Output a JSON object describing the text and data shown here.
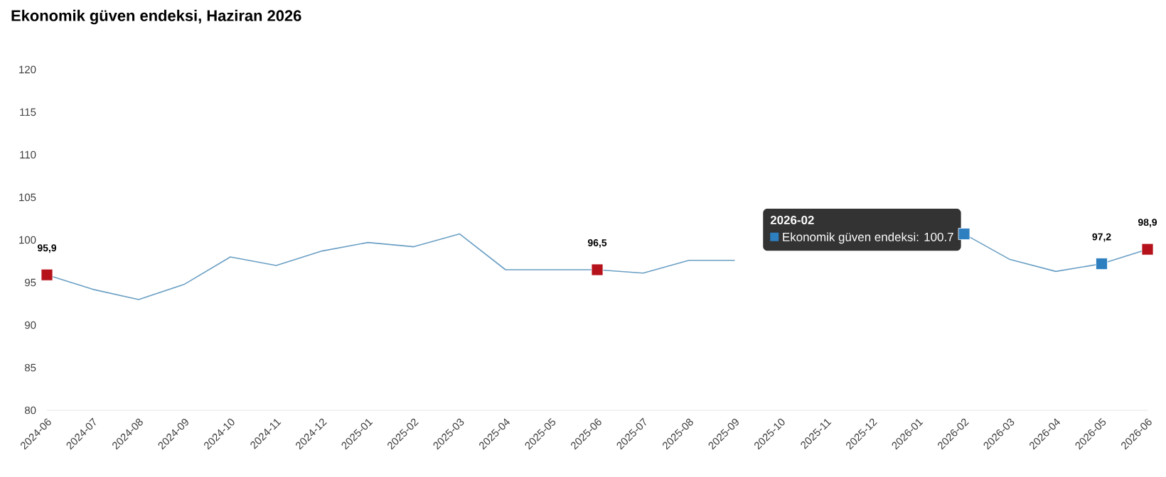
{
  "chart_data": {
    "type": "line",
    "title": "Ekonomik güven endeksi, Haziran 2026",
    "categories": [
      "2024-06",
      "2024-07",
      "2024-08",
      "2024-09",
      "2024-10",
      "2024-11",
      "2024-12",
      "2025-01",
      "2025-02",
      "2025-03",
      "2025-04",
      "2025-05",
      "2025-06",
      "2025-07",
      "2025-08",
      "2025-09",
      "2025-10",
      "2025-11",
      "2025-12",
      "2026-01",
      "2026-02",
      "2026-03",
      "2026-04",
      "2026-05",
      "2026-06"
    ],
    "series": [
      {
        "color": "#6a9fc4",
        "marker": "none",
        "values": [
          95.9,
          94.2,
          93.0,
          94.8,
          98.0,
          97.0,
          98.7,
          99.7,
          99.2,
          100.7,
          96.5,
          96.5,
          96.5,
          96.1,
          97.6,
          97.6,
          null,
          null,
          null,
          null,
          100.7,
          97.7,
          96.3,
          97.2,
          98.9
        ]
      },
      {
        "type": "scatter",
        "color": "#b5121b",
        "marker": "square",
        "values": [
          95.9,
          null,
          null,
          null,
          null,
          null,
          null,
          null,
          null,
          null,
          null,
          null,
          96.5,
          null,
          null,
          null,
          null,
          null,
          null,
          null,
          null,
          null,
          null,
          null,
          98.9
        ],
        "value_labels": [
          "95,9",
          null,
          null,
          null,
          null,
          null,
          null,
          null,
          null,
          null,
          null,
          null,
          "96,5",
          null,
          null,
          null,
          null,
          null,
          null,
          null,
          null,
          null,
          null,
          null,
          "98,9"
        ]
      },
      {
        "type": "scatter",
        "color": "#2e7fc0",
        "marker": "square",
        "values": [
          null,
          null,
          null,
          null,
          null,
          null,
          null,
          null,
          null,
          null,
          null,
          null,
          null,
          null,
          null,
          null,
          null,
          null,
          null,
          null,
          100.7,
          null,
          null,
          97.2,
          null
        ],
        "value_labels": [
          null,
          null,
          null,
          null,
          null,
          null,
          null,
          null,
          null,
          null,
          null,
          null,
          null,
          null,
          null,
          null,
          null,
          null,
          null,
          null,
          null,
          null,
          null,
          "97,2",
          null
        ]
      }
    ],
    "annotations": [
      "2026-02",
      "Ekonomik güven endeksi: 100.7"
    ],
    "ylim": [
      80,
      120
    ],
    "yticks": [
      80,
      85,
      90,
      95,
      100,
      105,
      110,
      115,
      120
    ],
    "grid": false
  }
}
